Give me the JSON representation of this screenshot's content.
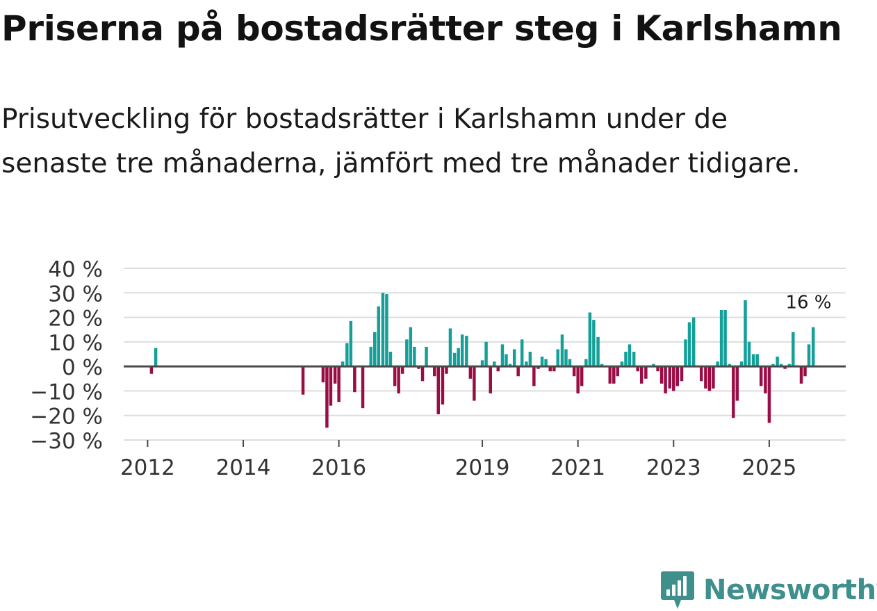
{
  "title": "Priserna på bostadsrätter steg i Karlshamn",
  "subtitle": "Prisutveckling för bostadsrätter i Karlshamn under de senaste tre månaderna, jämfört med tre månader tidigare.",
  "brand": {
    "name": "Newsworthy",
    "icon": "newsworthy-logo-icon"
  },
  "colors": {
    "positive": "#14a099",
    "negative": "#990d45",
    "grid": "#dddddd",
    "zero": "#4a4a4a",
    "text": "#333333"
  },
  "chart_data": {
    "type": "bar",
    "title": "",
    "xlabel": "",
    "ylabel": "",
    "ylim": [
      -30,
      40
    ],
    "xlim": [
      2011.5,
      2026.6
    ],
    "y_ticks": [
      -30,
      -20,
      -10,
      0,
      10,
      20,
      30,
      40
    ],
    "y_tick_labels": [
      "−30 %",
      "−20 %",
      "−10 %",
      "0 %",
      "10 %",
      "20 %",
      "30 %",
      "40 %"
    ],
    "x_ticks": [
      2012,
      2014,
      2016,
      2019,
      2021,
      2023,
      2025
    ],
    "x_tick_labels": [
      "2012",
      "2014",
      "2016",
      "2019",
      "2021",
      "2023",
      "2025"
    ],
    "annotation": {
      "text": "16 %",
      "x": 2025.75,
      "y": 16
    },
    "series": [
      {
        "name": "Prisutveckling",
        "points": [
          {
            "x": 2012.08,
            "y": -3
          },
          {
            "x": 2012.17,
            "y": 7.5
          },
          {
            "x": 2015.25,
            "y": -11.5
          },
          {
            "x": 2015.67,
            "y": -6.5
          },
          {
            "x": 2015.75,
            "y": -25
          },
          {
            "x": 2015.83,
            "y": -16
          },
          {
            "x": 2015.92,
            "y": -7
          },
          {
            "x": 2016.0,
            "y": -14.5
          },
          {
            "x": 2016.08,
            "y": 2
          },
          {
            "x": 2016.17,
            "y": 9.5
          },
          {
            "x": 2016.25,
            "y": 18.5
          },
          {
            "x": 2016.33,
            "y": -10.5
          },
          {
            "x": 2016.5,
            "y": -17
          },
          {
            "x": 2016.67,
            "y": 8
          },
          {
            "x": 2016.75,
            "y": 14
          },
          {
            "x": 2016.83,
            "y": 24.5
          },
          {
            "x": 2016.92,
            "y": 30
          },
          {
            "x": 2017.0,
            "y": 29.5
          },
          {
            "x": 2017.08,
            "y": 6
          },
          {
            "x": 2017.17,
            "y": -8
          },
          {
            "x": 2017.25,
            "y": -11
          },
          {
            "x": 2017.33,
            "y": -3
          },
          {
            "x": 2017.42,
            "y": 11
          },
          {
            "x": 2017.5,
            "y": 16
          },
          {
            "x": 2017.58,
            "y": 8
          },
          {
            "x": 2017.67,
            "y": -1
          },
          {
            "x": 2017.75,
            "y": -6
          },
          {
            "x": 2017.83,
            "y": 8
          },
          {
            "x": 2018.0,
            "y": -4
          },
          {
            "x": 2018.08,
            "y": -19.5
          },
          {
            "x": 2018.17,
            "y": -15.5
          },
          {
            "x": 2018.25,
            "y": -3
          },
          {
            "x": 2018.33,
            "y": 15.5
          },
          {
            "x": 2018.42,
            "y": 5.5
          },
          {
            "x": 2018.5,
            "y": 7.5
          },
          {
            "x": 2018.58,
            "y": 13
          },
          {
            "x": 2018.67,
            "y": 12.5
          },
          {
            "x": 2018.75,
            "y": -5
          },
          {
            "x": 2018.83,
            "y": -14
          },
          {
            "x": 2019.0,
            "y": 2.5
          },
          {
            "x": 2019.08,
            "y": 10
          },
          {
            "x": 2019.17,
            "y": -11
          },
          {
            "x": 2019.25,
            "y": 2
          },
          {
            "x": 2019.33,
            "y": -2
          },
          {
            "x": 2019.42,
            "y": 9
          },
          {
            "x": 2019.5,
            "y": 5
          },
          {
            "x": 2019.58,
            "y": 1
          },
          {
            "x": 2019.67,
            "y": 7
          },
          {
            "x": 2019.75,
            "y": -4
          },
          {
            "x": 2019.83,
            "y": 11
          },
          {
            "x": 2019.92,
            "y": 2
          },
          {
            "x": 2020.0,
            "y": 6
          },
          {
            "x": 2020.08,
            "y": -8
          },
          {
            "x": 2020.17,
            "y": -1
          },
          {
            "x": 2020.25,
            "y": 4
          },
          {
            "x": 2020.33,
            "y": 3
          },
          {
            "x": 2020.42,
            "y": -2
          },
          {
            "x": 2020.5,
            "y": -2
          },
          {
            "x": 2020.58,
            "y": 7
          },
          {
            "x": 2020.67,
            "y": 13
          },
          {
            "x": 2020.75,
            "y": 7
          },
          {
            "x": 2020.83,
            "y": 3
          },
          {
            "x": 2020.92,
            "y": -4
          },
          {
            "x": 2021.0,
            "y": -11
          },
          {
            "x": 2021.08,
            "y": -8
          },
          {
            "x": 2021.17,
            "y": 3
          },
          {
            "x": 2021.25,
            "y": 22
          },
          {
            "x": 2021.33,
            "y": 19
          },
          {
            "x": 2021.42,
            "y": 12
          },
          {
            "x": 2021.5,
            "y": 1
          },
          {
            "x": 2021.67,
            "y": -7
          },
          {
            "x": 2021.75,
            "y": -7
          },
          {
            "x": 2021.83,
            "y": -4
          },
          {
            "x": 2021.92,
            "y": 2
          },
          {
            "x": 2022.0,
            "y": 6
          },
          {
            "x": 2022.08,
            "y": 9
          },
          {
            "x": 2022.17,
            "y": 6
          },
          {
            "x": 2022.25,
            "y": -2
          },
          {
            "x": 2022.33,
            "y": -7
          },
          {
            "x": 2022.42,
            "y": -5
          },
          {
            "x": 2022.58,
            "y": 1
          },
          {
            "x": 2022.67,
            "y": -2
          },
          {
            "x": 2022.75,
            "y": -7
          },
          {
            "x": 2022.83,
            "y": -11
          },
          {
            "x": 2022.92,
            "y": -9
          },
          {
            "x": 2023.0,
            "y": -10
          },
          {
            "x": 2023.08,
            "y": -8
          },
          {
            "x": 2023.17,
            "y": -6
          },
          {
            "x": 2023.25,
            "y": 11
          },
          {
            "x": 2023.33,
            "y": 18
          },
          {
            "x": 2023.42,
            "y": 20
          },
          {
            "x": 2023.58,
            "y": -6
          },
          {
            "x": 2023.67,
            "y": -9
          },
          {
            "x": 2023.75,
            "y": -10
          },
          {
            "x": 2023.83,
            "y": -9
          },
          {
            "x": 2023.92,
            "y": 2
          },
          {
            "x": 2024.0,
            "y": 23
          },
          {
            "x": 2024.08,
            "y": 23
          },
          {
            "x": 2024.17,
            "y": 1
          },
          {
            "x": 2024.25,
            "y": -21
          },
          {
            "x": 2024.33,
            "y": -14
          },
          {
            "x": 2024.42,
            "y": 2
          },
          {
            "x": 2024.5,
            "y": 27
          },
          {
            "x": 2024.58,
            "y": 10
          },
          {
            "x": 2024.67,
            "y": 5
          },
          {
            "x": 2024.75,
            "y": 5
          },
          {
            "x": 2024.83,
            "y": -8
          },
          {
            "x": 2024.92,
            "y": -11
          },
          {
            "x": 2025.0,
            "y": -23
          },
          {
            "x": 2025.08,
            "y": 1
          },
          {
            "x": 2025.17,
            "y": 4
          },
          {
            "x": 2025.25,
            "y": 1
          },
          {
            "x": 2025.33,
            "y": -1
          },
          {
            "x": 2025.42,
            "y": 1
          },
          {
            "x": 2025.5,
            "y": 14
          },
          {
            "x": 2025.58,
            "y": 0.5
          },
          {
            "x": 2025.67,
            "y": -7
          },
          {
            "x": 2025.75,
            "y": -4
          },
          {
            "x": 2025.83,
            "y": 9
          },
          {
            "x": 2025.92,
            "y": 16
          }
        ]
      }
    ]
  }
}
